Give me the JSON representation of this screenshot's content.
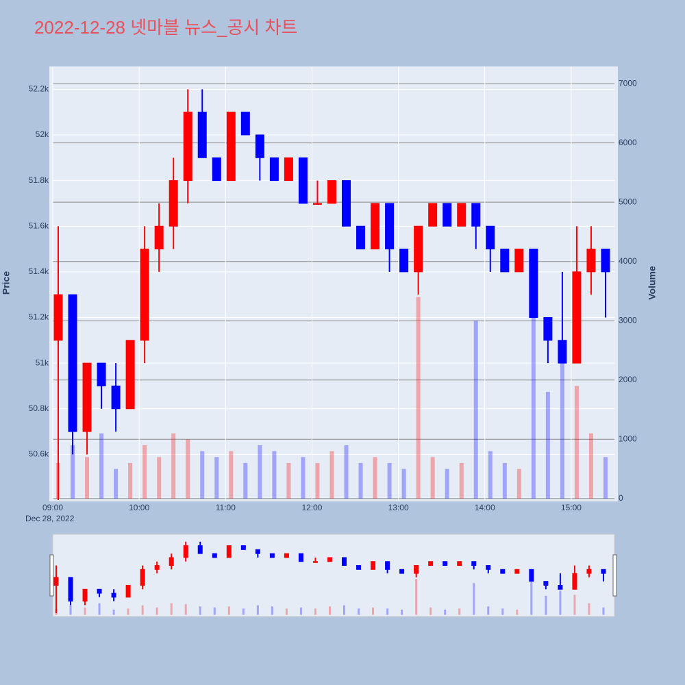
{
  "chart_data": {
    "type": "candlestick",
    "title": "2022-12-28 넷마블 뉴스_공시 차트",
    "y_label": "Price",
    "y2_label": "Volume",
    "x_date_label": "Dec 28, 2022",
    "increasing_color": "red",
    "decreasing_color": "blue",
    "grid": true,
    "x": [
      "09:00",
      "09:10",
      "09:20",
      "09:30",
      "09:40",
      "09:50",
      "10:00",
      "10:10",
      "10:20",
      "10:30",
      "10:40",
      "10:50",
      "11:00",
      "11:10",
      "11:20",
      "11:30",
      "11:40",
      "11:50",
      "12:00",
      "12:10",
      "12:20",
      "12:30",
      "12:40",
      "12:50",
      "13:00",
      "13:10",
      "13:20",
      "13:30",
      "13:40",
      "13:50",
      "14:00",
      "14:10",
      "14:20",
      "14:30",
      "14:40",
      "14:50",
      "15:00",
      "15:10",
      "15:20"
    ],
    "open": [
      51100,
      51300,
      50700,
      51000,
      50900,
      50800,
      51100,
      51500,
      51600,
      51800,
      52100,
      51900,
      51800,
      52100,
      52000,
      51900,
      51800,
      51900,
      51700,
      51700,
      51800,
      51600,
      51500,
      51700,
      51500,
      51400,
      51600,
      51700,
      51600,
      51700,
      51600,
      51500,
      51400,
      51500,
      51200,
      51100,
      51000,
      51400,
      51500
    ],
    "high": [
      51600,
      51300,
      51000,
      51000,
      51000,
      51100,
      51600,
      51700,
      51900,
      52200,
      52200,
      51900,
      52100,
      52100,
      52000,
      51900,
      51900,
      51900,
      51800,
      51800,
      51800,
      51600,
      51700,
      51700,
      51500,
      51600,
      51700,
      51700,
      51700,
      51700,
      51600,
      51500,
      51500,
      51500,
      51200,
      51400,
      51600,
      51600,
      51500
    ],
    "low": [
      50400,
      50600,
      50600,
      50800,
      50700,
      50800,
      51000,
      51400,
      51500,
      51700,
      51900,
      51800,
      51800,
      52000,
      51800,
      51800,
      51800,
      51700,
      51700,
      51700,
      51600,
      51500,
      51500,
      51400,
      51400,
      51300,
      51600,
      51600,
      51600,
      51500,
      51400,
      51400,
      51400,
      51200,
      51000,
      51000,
      51000,
      51300,
      51200
    ],
    "close": [
      51300,
      50700,
      51000,
      50900,
      50800,
      51100,
      51500,
      51600,
      51800,
      52100,
      51900,
      51800,
      52100,
      52000,
      51900,
      51800,
      51900,
      51700,
      51700,
      51800,
      51600,
      51500,
      51700,
      51500,
      51400,
      51600,
      51700,
      51600,
      51700,
      51600,
      51500,
      51400,
      51500,
      51200,
      51100,
      51000,
      51400,
      51500,
      51400
    ],
    "volume": [
      600,
      900,
      700,
      1100,
      500,
      600,
      900,
      700,
      1100,
      1000,
      800,
      700,
      800,
      600,
      900,
      800,
      600,
      700,
      600,
      800,
      900,
      600,
      700,
      600,
      500,
      3400,
      700,
      500,
      600,
      3000,
      800,
      600,
      500,
      3100,
      1800,
      2300,
      1900,
      1100,
      700
    ],
    "xlim": [
      "09:00",
      "15:30"
    ],
    "xticks": [
      "09:00",
      "10:00",
      "11:00",
      "12:00",
      "13:00",
      "14:00",
      "15:00"
    ],
    "ylim": [
      50400,
      52300
    ],
    "yticks": [
      {
        "value": 50600,
        "label": "50.6k"
      },
      {
        "value": 50800,
        "label": "50.8k"
      },
      {
        "value": 51000,
        "label": "51k"
      },
      {
        "value": 51200,
        "label": "51.2k"
      },
      {
        "value": 51400,
        "label": "51.4k"
      },
      {
        "value": 51600,
        "label": "51.6k"
      },
      {
        "value": 51800,
        "label": "51.8k"
      },
      {
        "value": 52000,
        "label": "52k"
      },
      {
        "value": 52200,
        "label": "52.2k"
      }
    ],
    "y2lim": [
      -25,
      7290
    ],
    "y2ticks": [
      0,
      1000,
      2000,
      3000,
      4000,
      5000,
      6000,
      7000
    ]
  }
}
